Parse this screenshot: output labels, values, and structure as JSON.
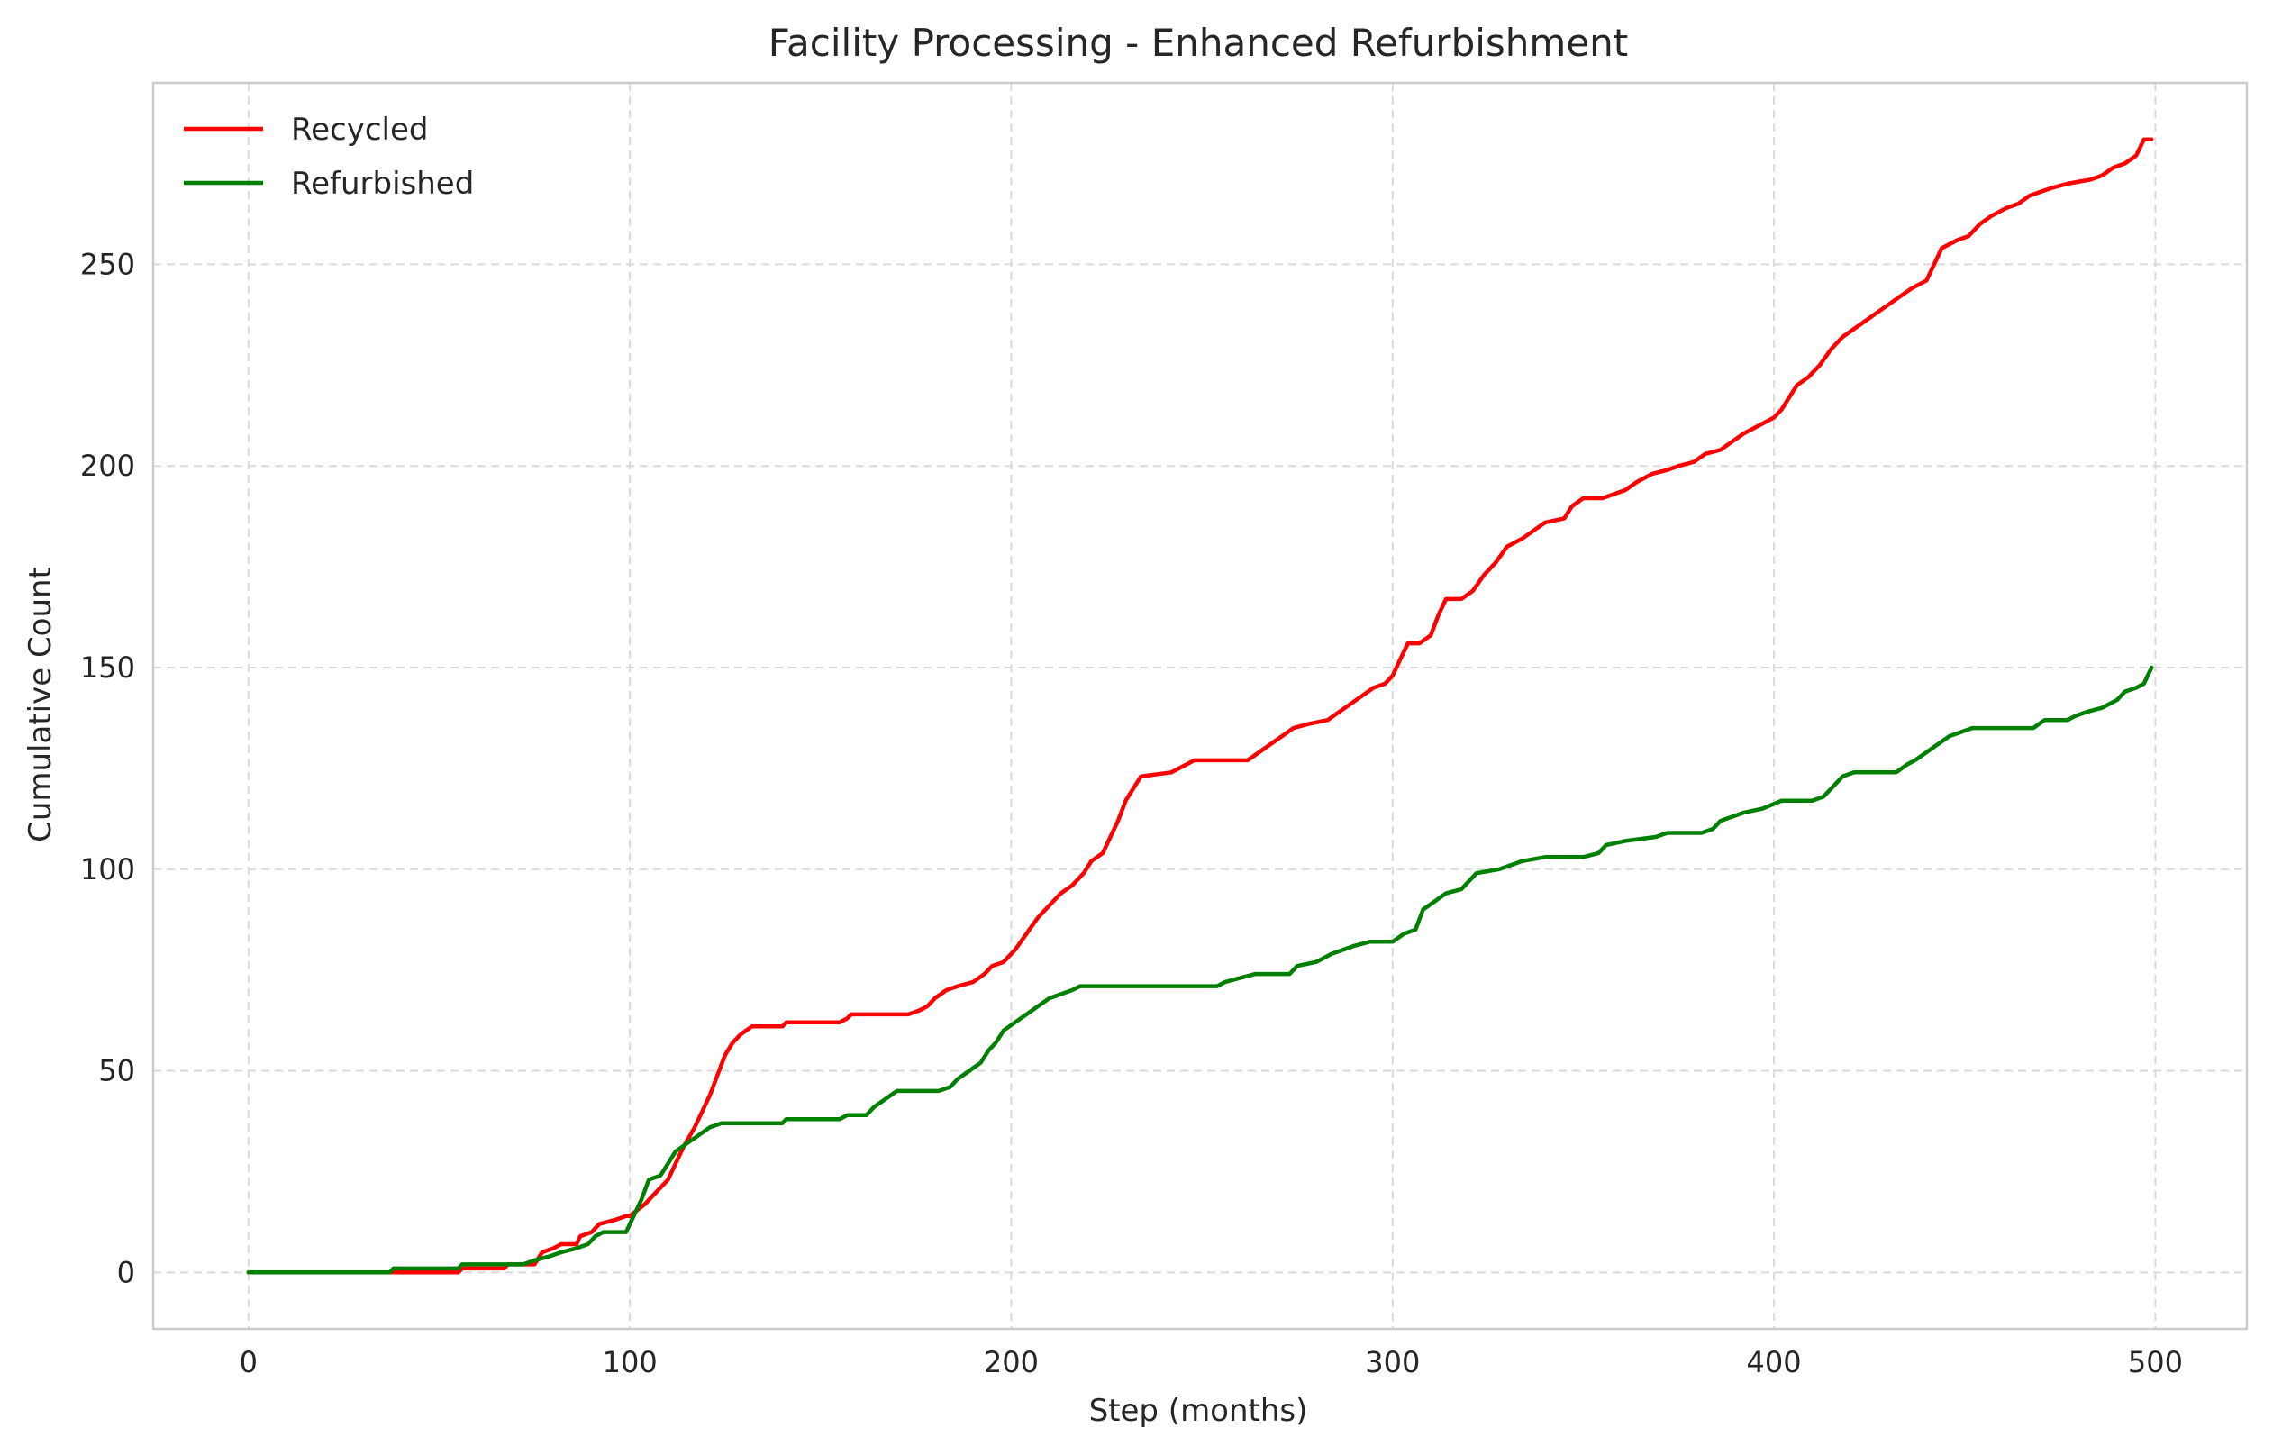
{
  "chart_data": {
    "type": "line",
    "title": "Facility Processing - Enhanced Refurbishment",
    "xlabel": "Step (months)",
    "ylabel": "Cumulative Count",
    "xlim": [
      -25,
      524
    ],
    "ylim": [
      -14,
      295
    ],
    "xticks": [
      0,
      100,
      200,
      300,
      400,
      500
    ],
    "yticks": [
      0,
      50,
      100,
      150,
      200,
      250
    ],
    "xtick_labels": [
      "0",
      "100",
      "200",
      "300",
      "400",
      "500"
    ],
    "ytick_labels": [
      "0",
      "50",
      "100",
      "150",
      "200",
      "250"
    ],
    "grid": true,
    "legend_position": "top-left",
    "series": [
      {
        "name": "Recycled",
        "color": "#ff0000",
        "points": [
          [
            0,
            0
          ],
          [
            55,
            0
          ],
          [
            56,
            1
          ],
          [
            67,
            1
          ],
          [
            68,
            2
          ],
          [
            75,
            2
          ],
          [
            77,
            5
          ],
          [
            80,
            6
          ],
          [
            82,
            7
          ],
          [
            86,
            7
          ],
          [
            87,
            9
          ],
          [
            90,
            10
          ],
          [
            92,
            12
          ],
          [
            96,
            13
          ],
          [
            99,
            14
          ],
          [
            100,
            14
          ],
          [
            104,
            17
          ],
          [
            106,
            19
          ],
          [
            108,
            21
          ],
          [
            110,
            23
          ],
          [
            112,
            27
          ],
          [
            114,
            31
          ],
          [
            117,
            36
          ],
          [
            119,
            40
          ],
          [
            121,
            44
          ],
          [
            123,
            49
          ],
          [
            125,
            54
          ],
          [
            127,
            57
          ],
          [
            129,
            59
          ],
          [
            132,
            61
          ],
          [
            140,
            61
          ],
          [
            141,
            62
          ],
          [
            155,
            62
          ],
          [
            157,
            63
          ],
          [
            158,
            64
          ],
          [
            173,
            64
          ],
          [
            176,
            65
          ],
          [
            178,
            66
          ],
          [
            180,
            68
          ],
          [
            183,
            70
          ],
          [
            186,
            71
          ],
          [
            190,
            72
          ],
          [
            193,
            74
          ],
          [
            195,
            76
          ],
          [
            198,
            77
          ],
          [
            201,
            80
          ],
          [
            204,
            84
          ],
          [
            207,
            88
          ],
          [
            210,
            91
          ],
          [
            213,
            94
          ],
          [
            216,
            96
          ],
          [
            219,
            99
          ],
          [
            221,
            102
          ],
          [
            224,
            104
          ],
          [
            226,
            108
          ],
          [
            228,
            112
          ],
          [
            230,
            117
          ],
          [
            232,
            120
          ],
          [
            234,
            123
          ],
          [
            242,
            124
          ],
          [
            246,
            126
          ],
          [
            248,
            127
          ],
          [
            262,
            127
          ],
          [
            265,
            129
          ],
          [
            268,
            131
          ],
          [
            271,
            133
          ],
          [
            274,
            135
          ],
          [
            278,
            136
          ],
          [
            283,
            137
          ],
          [
            286,
            139
          ],
          [
            289,
            141
          ],
          [
            292,
            143
          ],
          [
            295,
            145
          ],
          [
            298,
            146
          ],
          [
            300,
            148
          ],
          [
            302,
            152
          ],
          [
            304,
            156
          ],
          [
            307,
            156
          ],
          [
            310,
            158
          ],
          [
            312,
            163
          ],
          [
            314,
            167
          ],
          [
            318,
            167
          ],
          [
            321,
            169
          ],
          [
            324,
            173
          ],
          [
            327,
            176
          ],
          [
            330,
            180
          ],
          [
            334,
            182
          ],
          [
            337,
            184
          ],
          [
            340,
            186
          ],
          [
            345,
            187
          ],
          [
            347,
            190
          ],
          [
            350,
            192
          ],
          [
            355,
            192
          ],
          [
            358,
            193
          ],
          [
            361,
            194
          ],
          [
            364,
            196
          ],
          [
            368,
            198
          ],
          [
            372,
            199
          ],
          [
            375,
            200
          ],
          [
            379,
            201
          ],
          [
            382,
            203
          ],
          [
            386,
            204
          ],
          [
            389,
            206
          ],
          [
            392,
            208
          ],
          [
            396,
            210
          ],
          [
            400,
            212
          ],
          [
            402,
            214
          ],
          [
            404,
            217
          ],
          [
            406,
            220
          ],
          [
            409,
            222
          ],
          [
            412,
            225
          ],
          [
            415,
            229
          ],
          [
            418,
            232
          ],
          [
            421,
            234
          ],
          [
            424,
            236
          ],
          [
            427,
            238
          ],
          [
            430,
            240
          ],
          [
            433,
            242
          ],
          [
            436,
            244
          ],
          [
            440,
            246
          ],
          [
            442,
            250
          ],
          [
            444,
            254
          ],
          [
            448,
            256
          ],
          [
            451,
            257
          ],
          [
            454,
            260
          ],
          [
            457,
            262
          ],
          [
            461,
            264
          ],
          [
            464,
            265
          ],
          [
            467,
            267
          ],
          [
            470,
            268
          ],
          [
            473,
            269
          ],
          [
            477,
            270
          ],
          [
            483,
            271
          ],
          [
            486,
            272
          ],
          [
            489,
            274
          ],
          [
            492,
            275
          ],
          [
            495,
            277
          ],
          [
            497,
            281
          ],
          [
            499,
            281
          ]
        ]
      },
      {
        "name": "Refurbished",
        "color": "#008000",
        "points": [
          [
            0,
            0
          ],
          [
            37,
            0
          ],
          [
            38,
            1
          ],
          [
            55,
            1
          ],
          [
            56,
            2
          ],
          [
            72,
            2
          ],
          [
            75,
            3
          ],
          [
            79,
            4
          ],
          [
            82,
            5
          ],
          [
            86,
            6
          ],
          [
            89,
            7
          ],
          [
            91,
            9
          ],
          [
            93,
            10
          ],
          [
            99,
            10
          ],
          [
            101,
            14
          ],
          [
            103,
            18
          ],
          [
            105,
            23
          ],
          [
            108,
            24
          ],
          [
            110,
            27
          ],
          [
            112,
            30
          ],
          [
            115,
            32
          ],
          [
            118,
            34
          ],
          [
            121,
            36
          ],
          [
            124,
            37
          ],
          [
            140,
            37
          ],
          [
            141,
            38
          ],
          [
            155,
            38
          ],
          [
            157,
            39
          ],
          [
            162,
            39
          ],
          [
            164,
            41
          ],
          [
            167,
            43
          ],
          [
            170,
            45
          ],
          [
            181,
            45
          ],
          [
            184,
            46
          ],
          [
            186,
            48
          ],
          [
            189,
            50
          ],
          [
            192,
            52
          ],
          [
            194,
            55
          ],
          [
            196,
            57
          ],
          [
            198,
            60
          ],
          [
            201,
            62
          ],
          [
            204,
            64
          ],
          [
            207,
            66
          ],
          [
            210,
            68
          ],
          [
            213,
            69
          ],
          [
            216,
            70
          ],
          [
            218,
            71
          ],
          [
            254,
            71
          ],
          [
            256,
            72
          ],
          [
            260,
            73
          ],
          [
            264,
            74
          ],
          [
            273,
            74
          ],
          [
            275,
            76
          ],
          [
            280,
            77
          ],
          [
            284,
            79
          ],
          [
            287,
            80
          ],
          [
            290,
            81
          ],
          [
            294,
            82
          ],
          [
            300,
            82
          ],
          [
            303,
            84
          ],
          [
            306,
            85
          ],
          [
            308,
            90
          ],
          [
            311,
            92
          ],
          [
            314,
            94
          ],
          [
            318,
            95
          ],
          [
            320,
            97
          ],
          [
            322,
            99
          ],
          [
            328,
            100
          ],
          [
            331,
            101
          ],
          [
            334,
            102
          ],
          [
            340,
            103
          ],
          [
            350,
            103
          ],
          [
            354,
            104
          ],
          [
            356,
            106
          ],
          [
            361,
            107
          ],
          [
            369,
            108
          ],
          [
            372,
            109
          ],
          [
            381,
            109
          ],
          [
            384,
            110
          ],
          [
            386,
            112
          ],
          [
            389,
            113
          ],
          [
            392,
            114
          ],
          [
            397,
            115
          ],
          [
            402,
            117
          ],
          [
            410,
            117
          ],
          [
            413,
            118
          ],
          [
            415,
            120
          ],
          [
            418,
            123
          ],
          [
            421,
            124
          ],
          [
            432,
            124
          ],
          [
            435,
            126
          ],
          [
            437,
            127
          ],
          [
            440,
            129
          ],
          [
            443,
            131
          ],
          [
            446,
            133
          ],
          [
            449,
            134
          ],
          [
            452,
            135
          ],
          [
            468,
            135
          ],
          [
            471,
            137
          ],
          [
            477,
            137
          ],
          [
            479,
            138
          ],
          [
            482,
            139
          ],
          [
            486,
            140
          ],
          [
            490,
            142
          ],
          [
            492,
            144
          ],
          [
            495,
            145
          ],
          [
            497,
            146
          ],
          [
            499,
            150
          ]
        ]
      }
    ]
  }
}
